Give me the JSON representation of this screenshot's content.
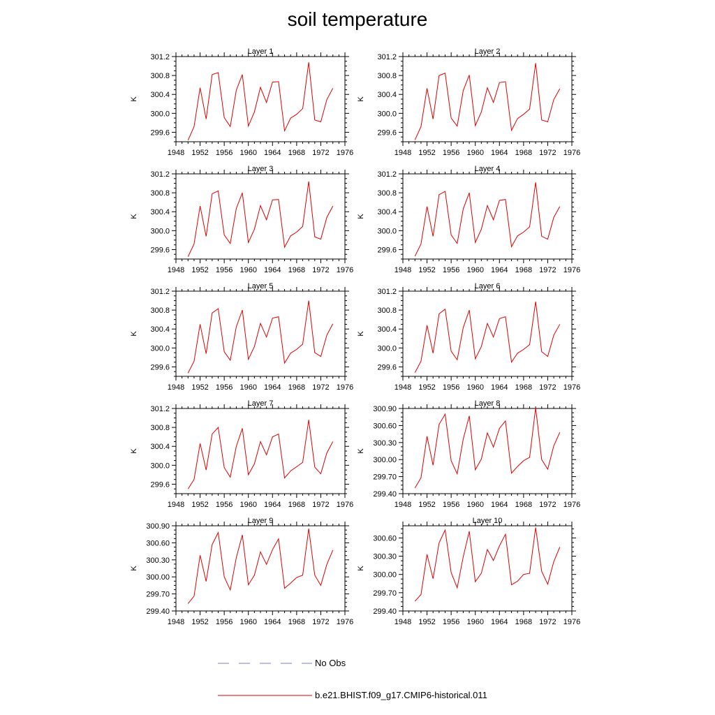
{
  "title": "soil temperature",
  "legend": [
    {
      "label": "No Obs",
      "color": "#7b7bd6",
      "style": "dashed"
    },
    {
      "label": "b.e21.BHIST.f09_g17.CMIP6-historical.011",
      "color": "#e00000",
      "style": "solid"
    }
  ],
  "chart_data": [
    {
      "type": "line",
      "title": "Layer 1",
      "ylabel": "K",
      "xlim": [
        1948,
        1976
      ],
      "ylim": [
        299.4,
        301.2
      ],
      "xticks": [
        1948,
        1952,
        1956,
        1960,
        1964,
        1968,
        1972,
        1976
      ],
      "yticks": [
        299.6,
        300.0,
        300.4,
        300.8,
        301.2
      ],
      "ytick_decimals": 1,
      "x": [
        1950,
        1951,
        1952,
        1953,
        1954,
        1955,
        1956,
        1957,
        1958,
        1959,
        1960,
        1961,
        1962,
        1963,
        1964,
        1965,
        1966,
        1967,
        1968,
        1969,
        1970,
        1971,
        1972,
        1973,
        1974
      ],
      "series": [
        {
          "name": "b.e21.BHIST.f09_g17.CMIP6-historical.011",
          "values": [
            299.43,
            299.72,
            300.54,
            299.88,
            300.82,
            300.86,
            299.91,
            299.72,
            300.49,
            300.82,
            299.73,
            300.03,
            300.55,
            300.23,
            300.66,
            300.67,
            299.63,
            299.9,
            299.98,
            300.1,
            301.08,
            299.86,
            299.82,
            300.29,
            300.53
          ]
        }
      ]
    },
    {
      "type": "line",
      "title": "Layer 2",
      "ylabel": "K",
      "xlim": [
        1948,
        1976
      ],
      "ylim": [
        299.4,
        301.2
      ],
      "xticks": [
        1948,
        1952,
        1956,
        1960,
        1964,
        1968,
        1972,
        1976
      ],
      "yticks": [
        299.6,
        300.0,
        300.4,
        300.8,
        301.2
      ],
      "ytick_decimals": 1,
      "x": [
        1950,
        1951,
        1952,
        1953,
        1954,
        1955,
        1956,
        1957,
        1958,
        1959,
        1960,
        1961,
        1962,
        1963,
        1964,
        1965,
        1966,
        1967,
        1968,
        1969,
        1970,
        1971,
        1972,
        1973,
        1974
      ],
      "series": [
        {
          "name": "b.e21.BHIST.f09_g17.CMIP6-historical.011",
          "values": [
            299.44,
            299.72,
            300.53,
            299.88,
            300.8,
            300.85,
            299.9,
            299.73,
            300.48,
            300.81,
            299.74,
            300.03,
            300.54,
            300.23,
            300.65,
            300.67,
            299.64,
            299.89,
            299.98,
            300.09,
            301.06,
            299.86,
            299.82,
            300.29,
            300.52
          ]
        }
      ]
    },
    {
      "type": "line",
      "title": "Layer 3",
      "ylabel": "K",
      "xlim": [
        1948,
        1976
      ],
      "ylim": [
        299.4,
        301.2
      ],
      "xticks": [
        1948,
        1952,
        1956,
        1960,
        1964,
        1968,
        1972,
        1976
      ],
      "yticks": [
        299.6,
        300.0,
        300.4,
        300.8,
        301.2
      ],
      "ytick_decimals": 1,
      "x": [
        1950,
        1951,
        1952,
        1953,
        1954,
        1955,
        1956,
        1957,
        1958,
        1959,
        1960,
        1961,
        1962,
        1963,
        1964,
        1965,
        1966,
        1967,
        1968,
        1969,
        1970,
        1971,
        1972,
        1973,
        1974
      ],
      "series": [
        {
          "name": "b.e21.BHIST.f09_g17.CMIP6-historical.011",
          "values": [
            299.45,
            299.72,
            300.52,
            299.88,
            300.78,
            300.84,
            299.91,
            299.73,
            300.47,
            300.8,
            299.75,
            300.03,
            300.53,
            300.23,
            300.65,
            300.66,
            299.65,
            299.89,
            299.97,
            300.09,
            301.04,
            299.87,
            299.82,
            300.28,
            300.52
          ]
        }
      ]
    },
    {
      "type": "line",
      "title": "Layer 4",
      "ylabel": "K",
      "xlim": [
        1948,
        1976
      ],
      "ylim": [
        299.4,
        301.2
      ],
      "xticks": [
        1948,
        1952,
        1956,
        1960,
        1964,
        1968,
        1972,
        1976
      ],
      "yticks": [
        299.6,
        300.0,
        300.4,
        300.8,
        301.2
      ],
      "ytick_decimals": 1,
      "x": [
        1950,
        1951,
        1952,
        1953,
        1954,
        1955,
        1956,
        1957,
        1958,
        1959,
        1960,
        1961,
        1962,
        1963,
        1964,
        1965,
        1966,
        1967,
        1968,
        1969,
        1970,
        1971,
        1972,
        1973,
        1974
      ],
      "series": [
        {
          "name": "b.e21.BHIST.f09_g17.CMIP6-historical.011",
          "values": [
            299.46,
            299.72,
            300.51,
            299.88,
            300.76,
            300.83,
            299.91,
            299.73,
            300.46,
            300.8,
            299.75,
            300.03,
            300.53,
            300.23,
            300.64,
            300.66,
            299.66,
            299.89,
            299.97,
            300.08,
            301.02,
            299.88,
            299.82,
            300.28,
            300.51
          ]
        }
      ]
    },
    {
      "type": "line",
      "title": "Layer 5",
      "ylabel": "K",
      "xlim": [
        1948,
        1976
      ],
      "ylim": [
        299.4,
        301.2
      ],
      "xticks": [
        1948,
        1952,
        1956,
        1960,
        1964,
        1968,
        1972,
        1976
      ],
      "yticks": [
        299.6,
        300.0,
        300.4,
        300.8,
        301.2
      ],
      "ytick_decimals": 1,
      "x": [
        1950,
        1951,
        1952,
        1953,
        1954,
        1955,
        1956,
        1957,
        1958,
        1959,
        1960,
        1961,
        1962,
        1963,
        1964,
        1965,
        1966,
        1967,
        1968,
        1969,
        1970,
        1971,
        1972,
        1973,
        1974
      ],
      "series": [
        {
          "name": "b.e21.BHIST.f09_g17.CMIP6-historical.011",
          "values": [
            299.47,
            299.72,
            300.5,
            299.88,
            300.74,
            300.83,
            299.92,
            299.74,
            300.45,
            300.8,
            299.76,
            300.03,
            300.52,
            300.23,
            300.63,
            300.66,
            299.68,
            299.89,
            299.97,
            300.08,
            301.0,
            299.9,
            299.82,
            300.27,
            300.51
          ]
        }
      ]
    },
    {
      "type": "line",
      "title": "Layer 6",
      "ylabel": "K",
      "xlim": [
        1948,
        1976
      ],
      "ylim": [
        299.4,
        301.2
      ],
      "xticks": [
        1948,
        1952,
        1956,
        1960,
        1964,
        1968,
        1972,
        1976
      ],
      "yticks": [
        299.6,
        300.0,
        300.4,
        300.8,
        301.2
      ],
      "ytick_decimals": 1,
      "x": [
        1950,
        1951,
        1952,
        1953,
        1954,
        1955,
        1956,
        1957,
        1958,
        1959,
        1960,
        1961,
        1962,
        1963,
        1964,
        1965,
        1966,
        1967,
        1968,
        1969,
        1970,
        1971,
        1972,
        1973,
        1974
      ],
      "series": [
        {
          "name": "b.e21.BHIST.f09_g17.CMIP6-historical.011",
          "values": [
            299.48,
            299.72,
            300.48,
            299.89,
            300.72,
            300.82,
            299.93,
            299.75,
            300.43,
            300.8,
            299.77,
            300.03,
            300.52,
            300.23,
            300.62,
            300.66,
            299.7,
            299.89,
            299.97,
            300.07,
            300.98,
            299.92,
            299.82,
            300.27,
            300.5
          ]
        }
      ]
    },
    {
      "type": "line",
      "title": "Layer 7",
      "ylabel": "K",
      "xlim": [
        1948,
        1976
      ],
      "ylim": [
        299.4,
        301.2
      ],
      "xticks": [
        1948,
        1952,
        1956,
        1960,
        1964,
        1968,
        1972,
        1976
      ],
      "yticks": [
        299.6,
        300.0,
        300.4,
        300.8,
        301.2
      ],
      "ytick_decimals": 1,
      "x": [
        1950,
        1951,
        1952,
        1953,
        1954,
        1955,
        1956,
        1957,
        1958,
        1959,
        1960,
        1961,
        1962,
        1963,
        1964,
        1965,
        1966,
        1967,
        1968,
        1969,
        1970,
        1971,
        1972,
        1973,
        1974
      ],
      "series": [
        {
          "name": "b.e21.BHIST.f09_g17.CMIP6-historical.011",
          "values": [
            299.5,
            299.7,
            300.46,
            299.9,
            300.66,
            300.8,
            299.95,
            299.75,
            300.4,
            300.78,
            299.8,
            300.03,
            300.5,
            300.22,
            300.6,
            300.66,
            299.73,
            299.88,
            299.97,
            300.06,
            300.96,
            299.96,
            299.82,
            300.26,
            300.5
          ]
        }
      ]
    },
    {
      "type": "line",
      "title": "Layer 8",
      "ylabel": "K",
      "xlim": [
        1948,
        1976
      ],
      "ylim": [
        299.4,
        300.9
      ],
      "xticks": [
        1948,
        1952,
        1956,
        1960,
        1964,
        1968,
        1972,
        1976
      ],
      "yticks": [
        299.4,
        299.7,
        300.0,
        300.3,
        300.6,
        300.9
      ],
      "ytick_decimals": 2,
      "x": [
        1950,
        1951,
        1952,
        1953,
        1954,
        1955,
        1956,
        1957,
        1958,
        1959,
        1960,
        1961,
        1962,
        1963,
        1964,
        1965,
        1966,
        1967,
        1968,
        1969,
        1970,
        1971,
        1972,
        1973,
        1974
      ],
      "series": [
        {
          "name": "b.e21.BHIST.f09_g17.CMIP6-historical.011",
          "values": [
            299.5,
            299.68,
            300.41,
            299.9,
            300.62,
            300.8,
            299.98,
            299.75,
            300.36,
            300.77,
            299.82,
            300.01,
            300.47,
            300.22,
            300.55,
            300.68,
            299.76,
            299.88,
            299.98,
            300.04,
            300.91,
            300.0,
            299.83,
            300.24,
            300.48
          ]
        }
      ]
    },
    {
      "type": "line",
      "title": "Layer 9",
      "ylabel": "K",
      "xlim": [
        1948,
        1976
      ],
      "ylim": [
        299.4,
        300.9
      ],
      "xticks": [
        1948,
        1952,
        1956,
        1960,
        1964,
        1968,
        1972,
        1976
      ],
      "yticks": [
        299.4,
        299.7,
        300.0,
        300.3,
        300.6,
        300.9
      ],
      "ytick_decimals": 2,
      "x": [
        1950,
        1951,
        1952,
        1953,
        1954,
        1955,
        1956,
        1957,
        1958,
        1959,
        1960,
        1961,
        1962,
        1963,
        1964,
        1965,
        1966,
        1967,
        1968,
        1969,
        1970,
        1971,
        1972,
        1973,
        1974
      ],
      "series": [
        {
          "name": "b.e21.BHIST.f09_g17.CMIP6-historical.011",
          "values": [
            299.53,
            299.66,
            300.38,
            299.92,
            300.57,
            300.78,
            300.0,
            299.77,
            300.34,
            300.74,
            299.86,
            300.03,
            300.44,
            300.22,
            300.48,
            300.67,
            299.8,
            299.89,
            299.99,
            300.03,
            300.85,
            300.03,
            299.85,
            300.22,
            300.47
          ]
        }
      ]
    },
    {
      "type": "line",
      "title": "Layer 10",
      "ylabel": "K",
      "xlim": [
        1948,
        1976
      ],
      "ylim": [
        299.4,
        300.8
      ],
      "xticks": [
        1948,
        1952,
        1956,
        1960,
        1964,
        1968,
        1972,
        1976
      ],
      "yticks": [
        299.4,
        299.7,
        300.0,
        300.3,
        300.6
      ],
      "ytick_decimals": 2,
      "x": [
        1950,
        1951,
        1952,
        1953,
        1954,
        1955,
        1956,
        1957,
        1958,
        1959,
        1960,
        1961,
        1962,
        1963,
        1964,
        1965,
        1966,
        1967,
        1968,
        1969,
        1970,
        1971,
        1972,
        1973,
        1974
      ],
      "series": [
        {
          "name": "b.e21.BHIST.f09_g17.CMIP6-historical.011",
          "values": [
            299.56,
            299.67,
            300.33,
            299.93,
            300.52,
            300.73,
            300.03,
            299.78,
            300.29,
            300.71,
            299.88,
            300.02,
            300.41,
            300.23,
            300.47,
            300.66,
            299.83,
            299.89,
            300.0,
            300.02,
            300.77,
            300.05,
            299.84,
            300.21,
            300.45
          ]
        }
      ]
    }
  ]
}
